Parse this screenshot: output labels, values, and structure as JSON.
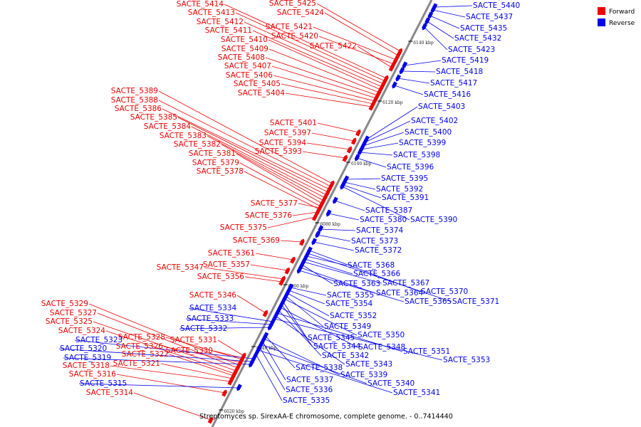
{
  "caption": "Streptomyces sp. SirexAA-E chromosome, complete genome. - 0..7414440",
  "legend": [
    {
      "label": "Forward",
      "color": "#ee0000"
    },
    {
      "label": "Reverse",
      "color": "#0000ee"
    }
  ],
  "colors": {
    "forward": "#ee0000",
    "reverse": "#0000ee",
    "axis": "#888888",
    "tick": "#000000"
  },
  "scale_ticks": [
    "6140 kbp",
    "6120 kbp",
    "6100 kbp",
    "6080 kbp",
    "6060 kbp",
    "6040 kbp",
    "6020 kbp"
  ],
  "forward_genes": [
    "SACTE_5425",
    "SACTE_5424",
    "SACTE_5421",
    "SACTE_5420",
    "SACTE_5422",
    "SACTE_5414",
    "SACTE_5413",
    "SACTE_5412",
    "SACTE_5411",
    "SACTE_5410",
    "SACTE_5409",
    "SACTE_5408",
    "SACTE_5407",
    "SACTE_5406",
    "SACTE_5405",
    "SACTE_5404",
    "SACTE_5389",
    "SACTE_5388",
    "SACTE_5386",
    "SACTE_5385",
    "SACTE_5384",
    "SACTE_5383",
    "SACTE_5382",
    "SACTE_5381",
    "SACTE_5379",
    "SACTE_5378",
    "SACTE_5401",
    "SACTE_5397",
    "SACTE_5394",
    "SACTE_5393",
    "SACTE_5377",
    "SACTE_5376",
    "SACTE_5375",
    "SACTE_5369",
    "SACTE_5361",
    "SACTE_5357",
    "SACTE_5347",
    "SACTE_5356",
    "SACTE_5346",
    "SACTE_5329",
    "SACTE_5327",
    "SACTE_5325",
    "SACTE_5324",
    "SACTE_5328",
    "SACTE_5326",
    "SACTE_5322",
    "SACTE_5321",
    "SACTE_5331",
    "SACTE_5330",
    "SACTE_5318",
    "SACTE_5316",
    "SACTE_5314"
  ],
  "reverse_genes": [
    "SACTE_5440",
    "SACTE_5437",
    "SACTE_5435",
    "SACTE_5432",
    "SACTE_5423",
    "SACTE_5419",
    "SACTE_5418",
    "SACTE_5417",
    "SACTE_5416",
    "SACTE_5403",
    "SACTE_5402",
    "SACTE_5400",
    "SACTE_5399",
    "SACTE_5398",
    "SACTE_5396",
    "SACTE_5395",
    "SACTE_5392",
    "SACTE_5391",
    "SACTE_5387",
    "SACTE_5380",
    "SACTE_5390",
    "SACTE_5374",
    "SACTE_5373",
    "SACTE_5372",
    "SACTE_5368",
    "SACTE_5366",
    "SACTE_5367",
    "SACTE_5363",
    "SACTE_5364",
    "SACTE_5370",
    "SACTE_5365",
    "SACTE_5371",
    "SACTE_5355",
    "SACTE_5354",
    "SACTE_5352",
    "SACTE_5349",
    "SACTE_5350",
    "SACTE_5345",
    "SACTE_5344",
    "SACTE_5348",
    "SACTE_5342",
    "SACTE_5351",
    "SACTE_5343",
    "SACTE_5353",
    "SACTE_5338",
    "SACTE_5339",
    "SACTE_5337",
    "SACTE_5340",
    "SACTE_5336",
    "SACTE_5341",
    "SACTE_5335",
    "SACTE_5334",
    "SACTE_5333",
    "SACTE_5332",
    "SACTE_5323",
    "SACTE_5320",
    "SACTE_5319",
    "SACTE_5315"
  ]
}
